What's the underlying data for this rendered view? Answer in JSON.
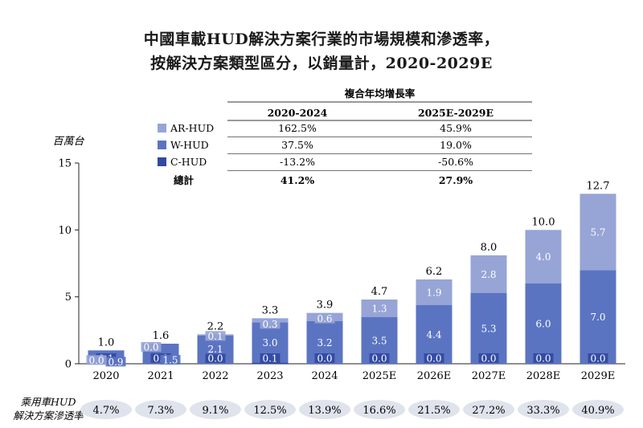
{
  "title": "中國車載HUD解決方案行業的市場規模和滲透率，",
  "subtitle": "按解決方案類型區分，以銷量計，2020-2029E",
  "cagr_table": {
    "heading": "複合年均增長率",
    "columns": [
      "2020-2024",
      "2025E-2029E"
    ],
    "rows": [
      {
        "label": "AR-HUD",
        "values": [
          "162.5%",
          "45.9%"
        ],
        "color": "#97a4d6"
      },
      {
        "label": "W-HUD",
        "values": [
          "37.5%",
          "19.0%"
        ],
        "color": "#5b74c2"
      },
      {
        "label": "C-HUD",
        "values": [
          "-13.2%",
          "-50.6%"
        ],
        "color": "#3149a3"
      }
    ],
    "total": {
      "label": "總計",
      "values": [
        "41.2%",
        "27.9%"
      ]
    }
  },
  "penetration": {
    "label_line1": "乘用車HUD",
    "label_line2": "解決方案滲透率",
    "values": [
      "4.7%",
      "7.3%",
      "9.1%",
      "12.5%",
      "13.9%",
      "16.6%",
      "21.5%",
      "27.2%",
      "33.3%",
      "40.9%"
    ],
    "bubble_color": "#dfe3ec"
  },
  "chart_data": {
    "type": "bar",
    "stacked": true,
    "ylabel": "百萬台",
    "ylim": [
      0,
      15
    ],
    "yticks": [
      0,
      5,
      10,
      15
    ],
    "categories": [
      "2020",
      "2021",
      "2022",
      "2023",
      "2024",
      "2025E",
      "2026E",
      "2027E",
      "2028E",
      "2029E"
    ],
    "series": [
      {
        "name": "C-HUD",
        "color": "#3149a3",
        "values": [
          0.1,
          0.0,
          0.0,
          0.1,
          0.0,
          0.0,
          0.0,
          0.0,
          0.0,
          0.0
        ],
        "labels": [
          "0.1",
          "0.0",
          "0.0",
          "0.1",
          "0.0",
          "0.0",
          "0.0",
          "0.0",
          "0.0",
          "0.0"
        ]
      },
      {
        "name": "W-HUD",
        "color": "#5b74c2",
        "values": [
          0.9,
          1.5,
          2.1,
          3.0,
          3.2,
          3.5,
          4.4,
          5.3,
          6.0,
          7.0
        ],
        "labels": [
          "0.9",
          "1.5",
          "2.1",
          "3.0",
          "3.2",
          "3.5",
          "4.4",
          "5.3",
          "6.0",
          "7.0"
        ]
      },
      {
        "name": "AR-HUD",
        "color": "#97a4d6",
        "values": [
          0.0,
          0.0,
          0.1,
          0.3,
          0.6,
          1.3,
          1.9,
          2.8,
          4.0,
          5.7
        ],
        "labels": [
          "0.0",
          "0.0",
          "0.1",
          "0.3",
          "0.6",
          "1.3",
          "1.9",
          "2.8",
          "4.0",
          "5.7"
        ]
      }
    ],
    "totals": [
      "1.0",
      "1.6",
      "2.2",
      "3.3",
      "3.9",
      "4.7",
      "6.2",
      "8.0",
      "10.0",
      "12.7"
    ],
    "grid": false
  }
}
